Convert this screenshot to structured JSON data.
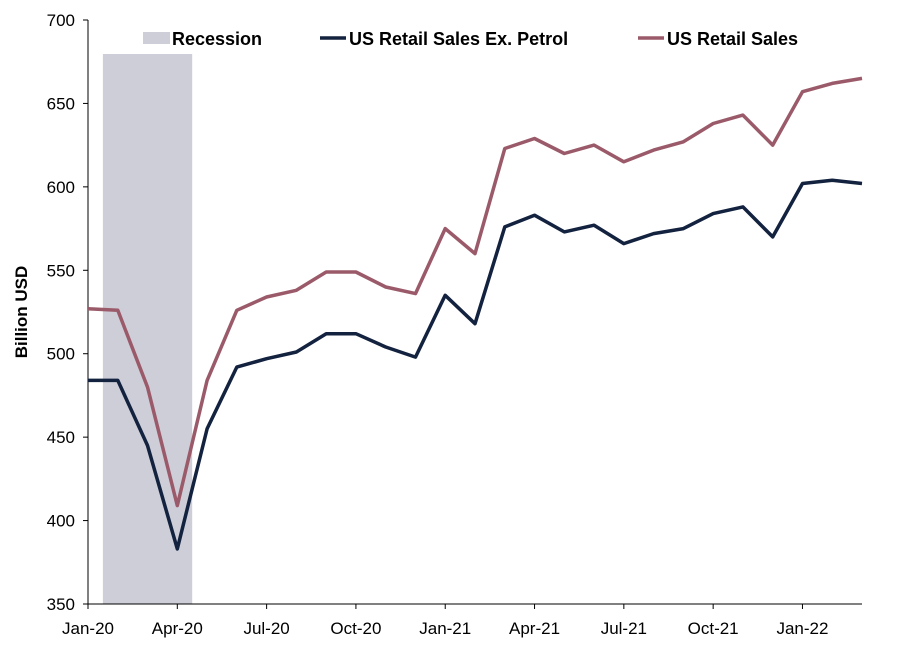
{
  "chart_data": {
    "type": "line",
    "title": "",
    "xlabel": "",
    "ylabel": "Billion USD",
    "ylim": [
      350,
      700
    ],
    "yticks": [
      350,
      400,
      450,
      500,
      550,
      600,
      650,
      700
    ],
    "xticks": [
      "Jan-20",
      "Apr-20",
      "Jul-20",
      "Oct-20",
      "Jan-21",
      "Apr-21",
      "Jul-21",
      "Oct-21",
      "Jan-22"
    ],
    "x": [
      "2020-01",
      "2020-02",
      "2020-03",
      "2020-04",
      "2020-05",
      "2020-06",
      "2020-07",
      "2020-08",
      "2020-09",
      "2020-10",
      "2020-11",
      "2020-12",
      "2021-01",
      "2021-02",
      "2021-03",
      "2021-04",
      "2021-05",
      "2021-06",
      "2021-07",
      "2021-08",
      "2021-09",
      "2021-10",
      "2021-11",
      "2021-12",
      "2022-01",
      "2022-02",
      "2022-03"
    ],
    "recession": {
      "name": "Recession",
      "start": "2020-02",
      "end": "2020-04",
      "color": "#cdced8"
    },
    "series": [
      {
        "name": "US Retail Sales Ex. Petrol",
        "color": "#13223f",
        "values": [
          484,
          484,
          445,
          383,
          455,
          492,
          497,
          501,
          512,
          512,
          504,
          498,
          535,
          518,
          576,
          583,
          573,
          577,
          566,
          572,
          575,
          584,
          588,
          570,
          602,
          604,
          602
        ]
      },
      {
        "name": "US Retail Sales",
        "color": "#9b5a69",
        "values": [
          527,
          526,
          480,
          409,
          484,
          526,
          534,
          538,
          549,
          549,
          540,
          536,
          575,
          560,
          623,
          629,
          620,
          625,
          615,
          622,
          627,
          638,
          643,
          625,
          657,
          662,
          665
        ]
      }
    ],
    "legend": {
      "placement": "top",
      "order": [
        "Recession",
        "US Retail Sales Ex. Petrol",
        "US Retail Sales"
      ]
    },
    "grid": false
  }
}
